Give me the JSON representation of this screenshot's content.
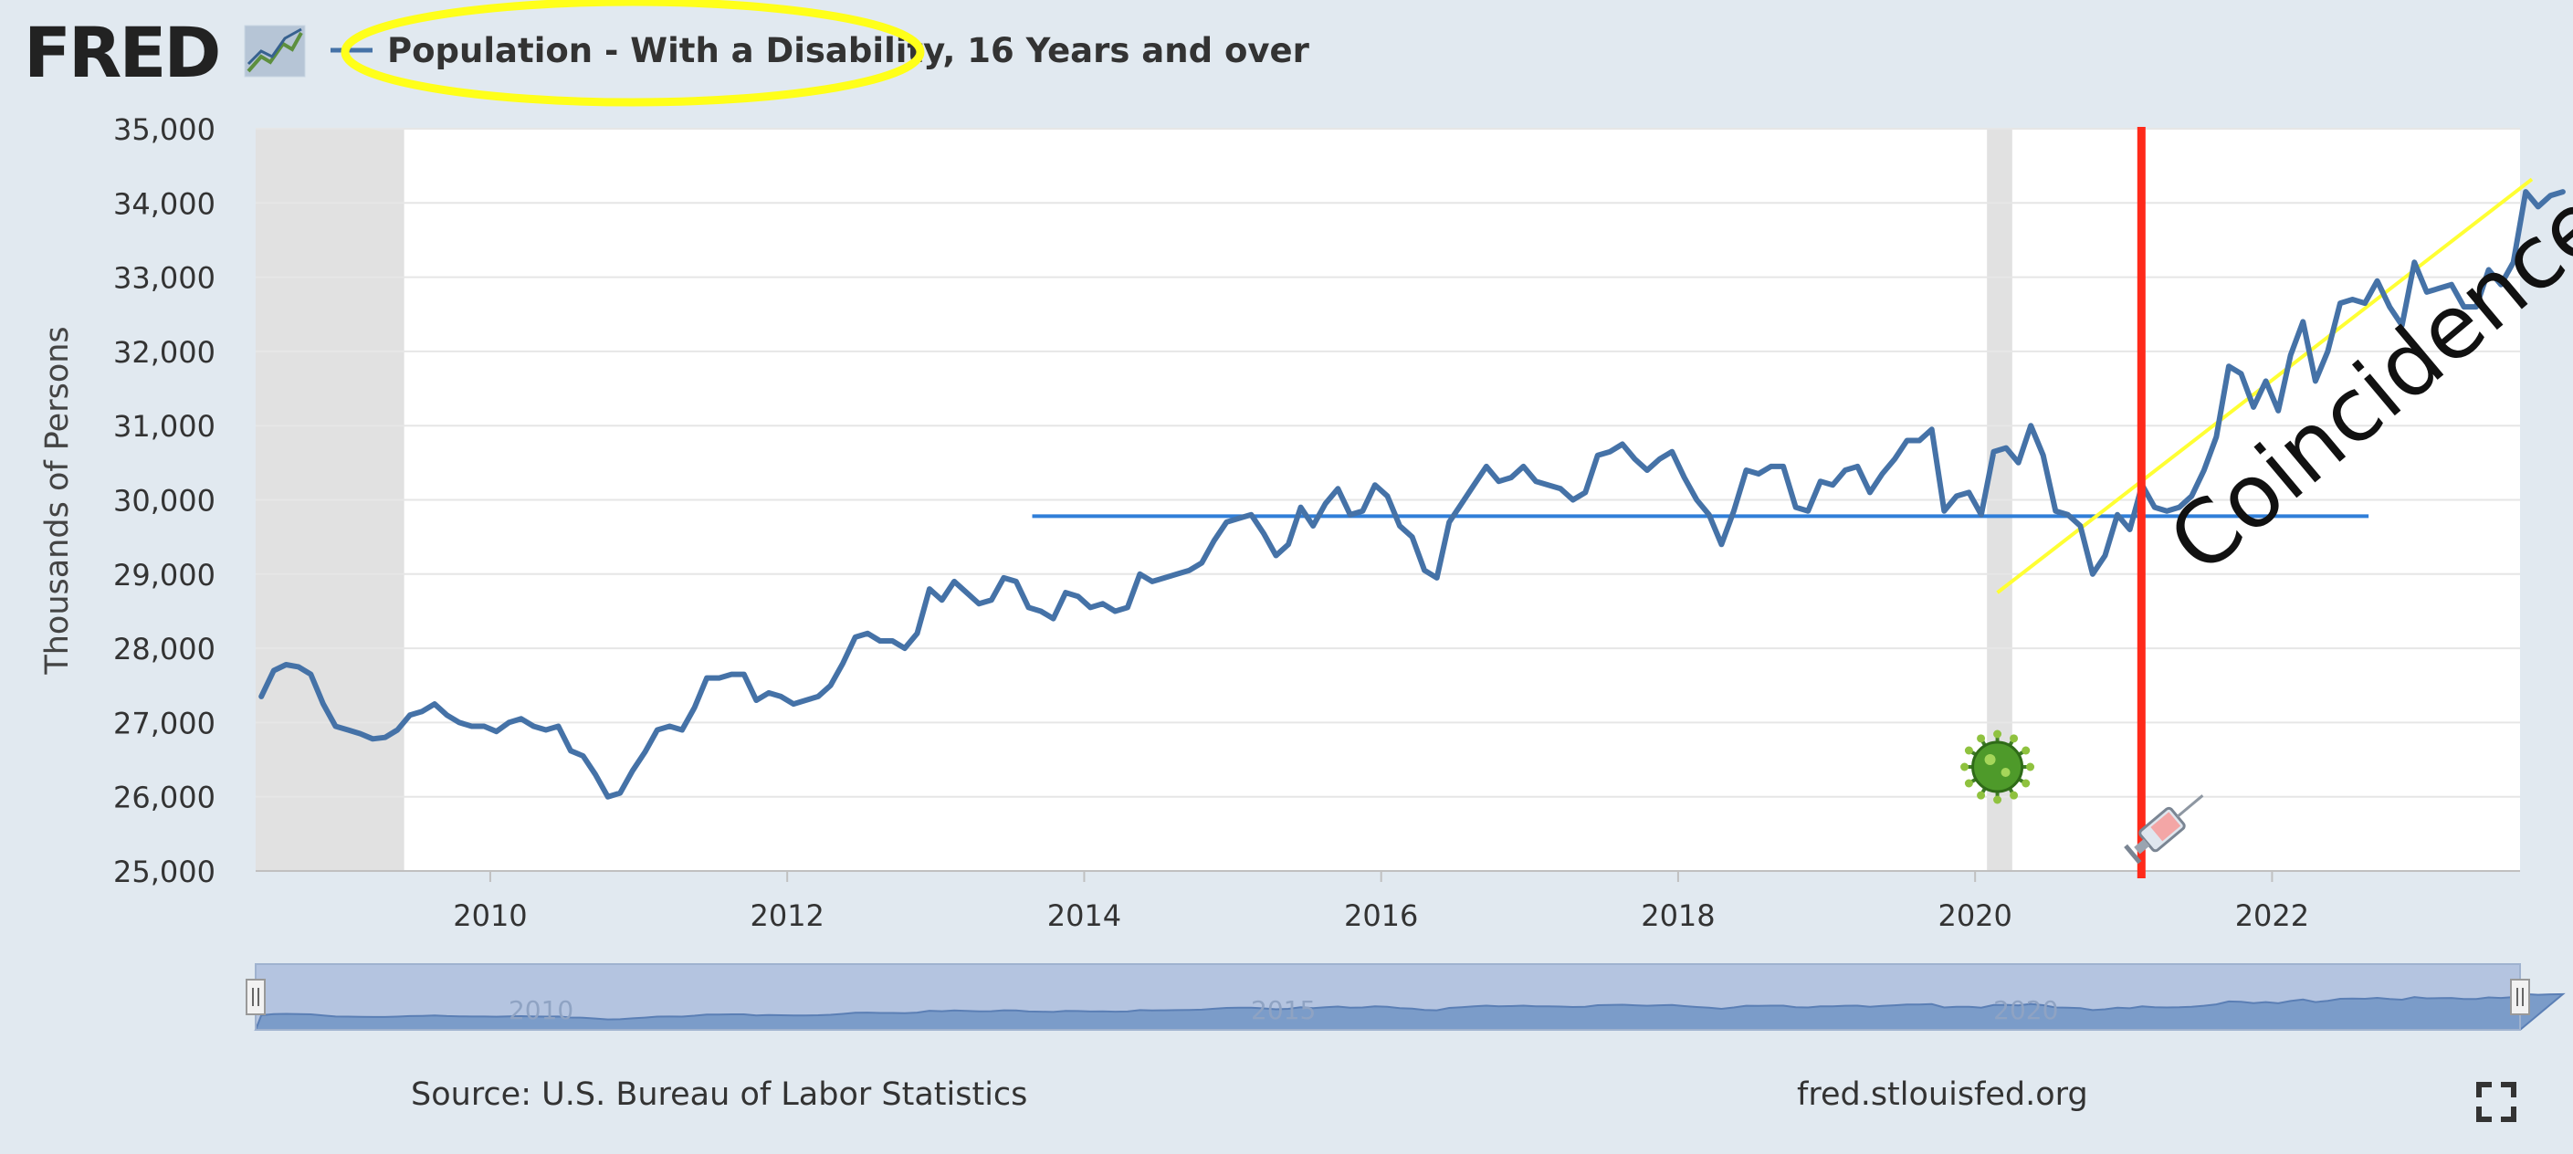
{
  "header": {
    "logo_text": "FRED",
    "legend_label": "Population - With a Disability, 16 Years and over"
  },
  "footer": {
    "source": "Source: U.S. Bureau of Labor Statistics",
    "site": "fred.stlouisfed.org"
  },
  "colors": {
    "background": "#e1e9f0",
    "plot": "#ffffff",
    "series": "#4572a7",
    "recession": "#e1e1e1",
    "hline": "#2f7ed8",
    "trend": "#ffff33",
    "vaccine_line": "#ff2a1a",
    "highlight_ellipse": "#ffff1a",
    "navigator_fill": "#b4c4e0",
    "navigator_series": "#7b9cc9"
  },
  "icons": {
    "logo_graph": "trend-graph-icon",
    "virus": "virus-icon",
    "syringe": "syringe-icon",
    "fullscreen": "fullscreen-icon"
  },
  "annotations": {
    "coincidence_text": "Coincidence!",
    "horizontal_line_value": 29780,
    "horizontal_line_from": 2013.65,
    "horizontal_line_to": 2022.65,
    "trend_from": [
      2020.15,
      28750
    ],
    "trend_to": [
      2023.75,
      34320
    ],
    "vaccine_date": 2021.12,
    "virus_date": 2020.15
  },
  "navigator": {
    "labels": [
      "2010",
      "2015",
      "2020"
    ],
    "label_years": [
      2010,
      2015,
      2020
    ]
  },
  "chart_data": {
    "type": "line",
    "title": "Population - With a Disability, 16 Years and over",
    "ylabel": "Thousands of Persons",
    "xlabel": "",
    "xlim": [
      2008.42,
      2023.67
    ],
    "ylim": [
      25000,
      35000
    ],
    "yticks": [
      25000,
      26000,
      27000,
      28000,
      29000,
      30000,
      31000,
      32000,
      33000,
      34000,
      35000
    ],
    "ytick_labels": [
      "25,000",
      "26,000",
      "27,000",
      "28,000",
      "29,000",
      "30,000",
      "31,000",
      "32,000",
      "33,000",
      "34,000",
      "35,000"
    ],
    "xticks": [
      2010,
      2012,
      2014,
      2016,
      2018,
      2020,
      2022
    ],
    "xtick_labels": [
      "2010",
      "2012",
      "2014",
      "2016",
      "2018",
      "2020",
      "2022"
    ],
    "grid": true,
    "legend": "top-left",
    "recessions": [
      [
        2008.42,
        2009.42
      ],
      [
        2020.08,
        2020.25
      ]
    ],
    "series": [
      {
        "name": "Population - With a Disability, 16 Years and over",
        "start": "2008-06",
        "frequency": "monthly",
        "values": [
          27350,
          27700,
          27780,
          27750,
          27650,
          27250,
          26950,
          26900,
          26850,
          26780,
          26800,
          26900,
          27100,
          27150,
          27250,
          27100,
          27000,
          26950,
          26950,
          26880,
          27000,
          27050,
          26950,
          26900,
          26950,
          26620,
          26550,
          26300,
          26000,
          26050,
          26350,
          26600,
          26900,
          26950,
          26900,
          27200,
          27600,
          27600,
          27650,
          27650,
          27300,
          27400,
          27350,
          27250,
          27300,
          27350,
          27500,
          27800,
          28150,
          28200,
          28100,
          28100,
          28000,
          28200,
          28800,
          28650,
          28900,
          28750,
          28600,
          28650,
          28950,
          28900,
          28550,
          28500,
          28400,
          28750,
          28700,
          28550,
          28600,
          28500,
          28550,
          29000,
          28900,
          28950,
          29000,
          29050,
          29150,
          29450,
          29700,
          29750,
          29800,
          29550,
          29250,
          29400,
          29900,
          29650,
          29950,
          30150,
          29800,
          29850,
          30200,
          30050,
          29650,
          29500,
          29050,
          28950,
          29700,
          29950,
          30200,
          30450,
          30250,
          30300,
          30450,
          30250,
          30200,
          30150,
          30000,
          30100,
          30600,
          30650,
          30750,
          30550,
          30400,
          30550,
          30650,
          30300,
          30000,
          29800,
          29400,
          29850,
          30400,
          30350,
          30450,
          30450,
          29900,
          29850,
          30250,
          30200,
          30400,
          30450,
          30100,
          30350,
          30550,
          30800,
          30800,
          30950,
          29850,
          30050,
          30100,
          29800,
          30650,
          30700,
          30500,
          31000,
          30600,
          29850,
          29800,
          29650,
          29000,
          29250,
          29800,
          29600,
          30200,
          29900,
          29850,
          29900,
          30050,
          30400,
          30850,
          31800,
          31700,
          31250,
          31600,
          31200,
          31950,
          32400,
          31600,
          32000,
          32650,
          32700,
          32650,
          32950,
          32600,
          32350,
          33200,
          32800,
          32850,
          32900,
          32600,
          32600,
          33100,
          32900,
          33200,
          34150,
          33950,
          34100,
          34150
        ]
      }
    ]
  }
}
